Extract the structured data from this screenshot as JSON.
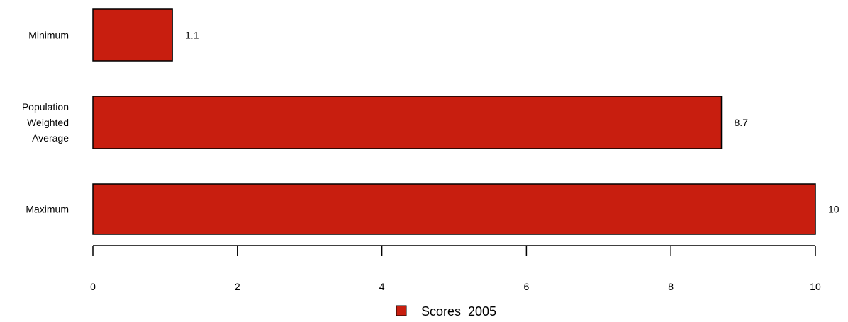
{
  "chart_data": {
    "type": "bar",
    "orientation": "horizontal",
    "categories": [
      "Minimum",
      "Population Weighted Average",
      "Maximum"
    ],
    "category_lines": [
      [
        "Minimum"
      ],
      [
        "Population",
        "Weighted",
        "Average"
      ],
      [
        "Maximum"
      ]
    ],
    "series": [
      {
        "name": "Scores  2005",
        "values": [
          1.1,
          8.7,
          10
        ],
        "labels": [
          "1.1",
          "8.7",
          "10"
        ],
        "color": "#c81e0f"
      }
    ],
    "xlim": [
      0,
      10
    ],
    "xticks": [
      0,
      2,
      4,
      6,
      8,
      10
    ],
    "xtick_labels": [
      "0",
      "2",
      "4",
      "6",
      "8",
      "10"
    ],
    "title": "",
    "xlabel": "",
    "ylabel": "",
    "grid": false,
    "legend": "bottom-center"
  }
}
